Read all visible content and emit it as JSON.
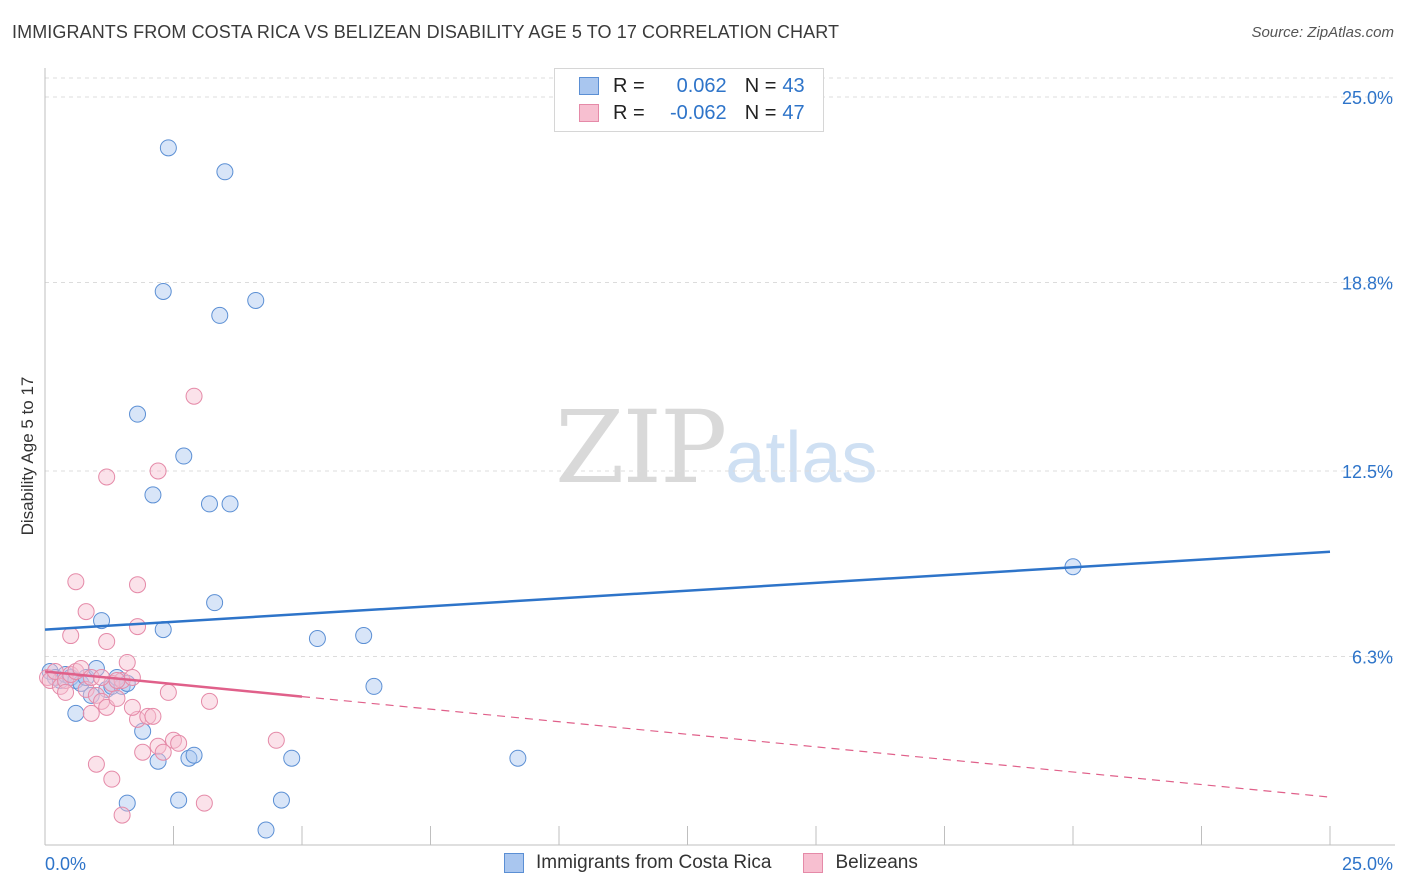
{
  "header": {
    "title": "IMMIGRANTS FROM COSTA RICA VS BELIZEAN DISABILITY AGE 5 TO 17 CORRELATION CHART",
    "source": "Source: ZipAtlas.com"
  },
  "watermark": {
    "zip": "ZIP",
    "atlas": "atlas"
  },
  "legend": {
    "rows": [
      {
        "r_label": "R =",
        "r_value": "0.062",
        "n_label": "N =",
        "n_value": "43",
        "color": "#a9c6ef",
        "border": "#5b8fd4"
      },
      {
        "r_label": "R =",
        "r_value": "-0.062",
        "n_label": "N =",
        "n_value": "47",
        "color": "#f7bfd0",
        "border": "#e58aa8"
      }
    ]
  },
  "bottom_legend": [
    {
      "label": "Immigrants from Costa Rica",
      "color": "#a9c6ef",
      "border": "#5b8fd4"
    },
    {
      "label": "Belizeans",
      "color": "#f7bfd0",
      "border": "#e58aa8"
    }
  ],
  "chart_data": {
    "type": "scatter",
    "title": "IMMIGRANTS FROM COSTA RICA VS BELIZEAN DISABILITY AGE 5 TO 17 CORRELATION CHART",
    "xlabel": "",
    "ylabel": "Disability Age 5 to 17",
    "xlim": [
      0,
      25
    ],
    "ylim": [
      0,
      25
    ],
    "x_tick_labels": [
      "0.0%",
      "25.0%"
    ],
    "y_ticks": [
      6.3,
      12.5,
      18.8,
      25.0
    ],
    "y_tick_labels": [
      "6.3%",
      "12.5%",
      "18.8%",
      "25.0%"
    ],
    "grid": true,
    "legend_position": "top-center",
    "series": [
      {
        "name": "Immigrants from Costa Rica",
        "color": "#a9c6ef",
        "stroke": "#5b8fd4",
        "line_color": "#2e74c9",
        "trend": {
          "x": [
            0,
            25
          ],
          "y": [
            7.2,
            9.8
          ],
          "dashed_from": null
        },
        "points": [
          [
            0.1,
            5.8
          ],
          [
            0.2,
            5.6
          ],
          [
            0.3,
            5.5
          ],
          [
            0.4,
            5.7
          ],
          [
            0.5,
            5.6
          ],
          [
            0.6,
            5.5
          ],
          [
            0.7,
            5.4
          ],
          [
            0.8,
            5.6
          ],
          [
            0.9,
            5.0
          ],
          [
            1.0,
            5.9
          ],
          [
            1.1,
            7.5
          ],
          [
            1.2,
            5.2
          ],
          [
            1.3,
            5.3
          ],
          [
            1.4,
            5.6
          ],
          [
            1.5,
            5.3
          ],
          [
            1.6,
            5.4
          ],
          [
            1.8,
            14.4
          ],
          [
            1.9,
            3.8
          ],
          [
            2.1,
            11.7
          ],
          [
            2.2,
            2.8
          ],
          [
            2.3,
            7.2
          ],
          [
            2.4,
            23.3
          ],
          [
            2.6,
            1.5
          ],
          [
            2.7,
            13.0
          ],
          [
            2.8,
            2.9
          ],
          [
            2.9,
            3.0
          ],
          [
            3.2,
            11.4
          ],
          [
            3.3,
            8.1
          ],
          [
            3.4,
            17.7
          ],
          [
            3.5,
            22.5
          ],
          [
            3.6,
            11.4
          ],
          [
            4.1,
            18.2
          ],
          [
            4.3,
            0.5
          ],
          [
            4.6,
            1.5
          ],
          [
            4.8,
            2.9
          ],
          [
            5.3,
            6.9
          ],
          [
            2.3,
            18.5
          ],
          [
            0.6,
            4.4
          ],
          [
            6.2,
            7.0
          ],
          [
            6.4,
            5.3
          ],
          [
            1.6,
            1.4
          ],
          [
            9.2,
            2.9
          ],
          [
            20.0,
            9.3
          ]
        ]
      },
      {
        "name": "Belizeans",
        "color": "#f7bfd0",
        "stroke": "#e58aa8",
        "line_color": "#e0608a",
        "trend": {
          "x": [
            0,
            25
          ],
          "y": [
            5.8,
            1.6
          ],
          "solid_until": 5.0
        },
        "points": [
          [
            0.05,
            5.6
          ],
          [
            0.1,
            5.5
          ],
          [
            0.2,
            5.8
          ],
          [
            0.3,
            5.3
          ],
          [
            0.4,
            5.5
          ],
          [
            0.5,
            5.7
          ],
          [
            0.6,
            5.8
          ],
          [
            0.7,
            5.9
          ],
          [
            0.8,
            5.2
          ],
          [
            0.9,
            5.6
          ],
          [
            1.0,
            5.0
          ],
          [
            1.1,
            4.8
          ],
          [
            1.2,
            4.6
          ],
          [
            1.3,
            5.4
          ],
          [
            1.4,
            4.9
          ],
          [
            1.5,
            5.5
          ],
          [
            1.6,
            6.1
          ],
          [
            1.7,
            5.6
          ],
          [
            1.8,
            4.2
          ],
          [
            1.9,
            3.1
          ],
          [
            2.0,
            4.3
          ],
          [
            2.1,
            4.3
          ],
          [
            2.2,
            3.3
          ],
          [
            2.4,
            5.1
          ],
          [
            2.5,
            3.5
          ],
          [
            2.6,
            3.4
          ],
          [
            0.5,
            7.0
          ],
          [
            0.6,
            8.8
          ],
          [
            0.8,
            7.8
          ],
          [
            1.2,
            6.8
          ],
          [
            1.2,
            12.3
          ],
          [
            1.8,
            7.3
          ],
          [
            1.8,
            8.7
          ],
          [
            2.2,
            12.5
          ],
          [
            2.9,
            15.0
          ],
          [
            3.1,
            1.4
          ],
          [
            3.2,
            4.8
          ],
          [
            4.5,
            3.5
          ],
          [
            1.5,
            1.0
          ],
          [
            1.3,
            2.2
          ],
          [
            1.0,
            2.7
          ],
          [
            1.4,
            5.5
          ],
          [
            0.9,
            4.4
          ],
          [
            1.7,
            4.6
          ],
          [
            2.3,
            3.1
          ],
          [
            0.4,
            5.1
          ],
          [
            1.1,
            5.6
          ]
        ]
      }
    ]
  }
}
